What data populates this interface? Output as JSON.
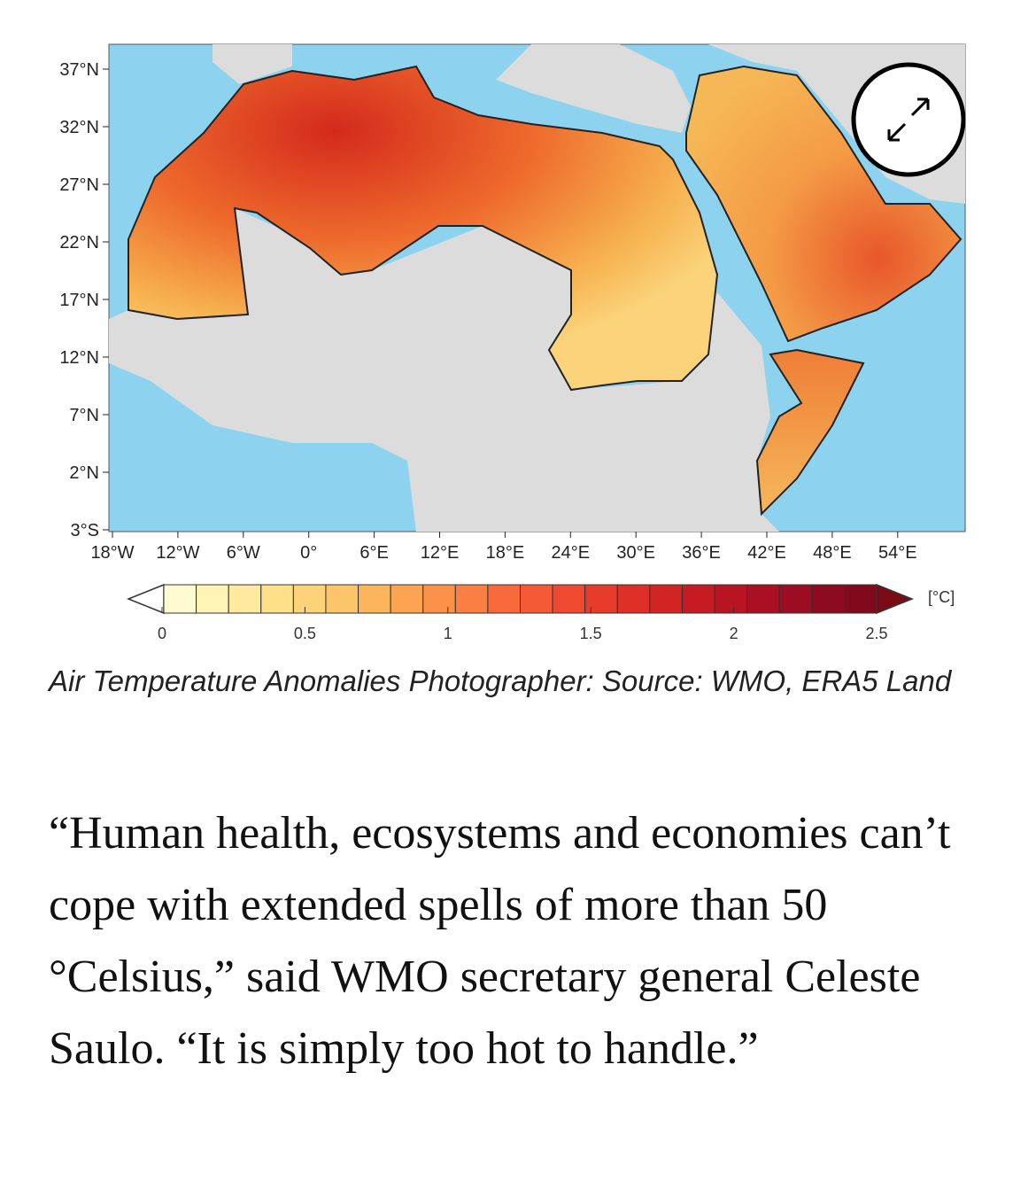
{
  "figure": {
    "lat_labels": [
      "37°N",
      "32°N",
      "27°N",
      "22°N",
      "17°N",
      "12°N",
      "7°N",
      "2°N",
      "3°S"
    ],
    "lon_labels": [
      "18°W",
      "12°W",
      "6°W",
      "0°",
      "6°E",
      "12°E",
      "18°E",
      "24°E",
      "30°E",
      "36°E",
      "42°E",
      "48°E",
      "54°E"
    ],
    "colorbar": {
      "ticks": [
        0,
        0.5,
        1,
        1.5,
        2,
        2.5
      ],
      "unit": "[°C]"
    },
    "caption": "Air Temperature Anomalies  Photographer: Source: WMO, ERA5 Land"
  },
  "article": {
    "quote": "“Human health, ecosystems and economies can’t cope with extended spells of more than 50 °Celsius,” said WMO secretary general Celeste Saulo. “It is simply too hot to handle.”"
  }
}
